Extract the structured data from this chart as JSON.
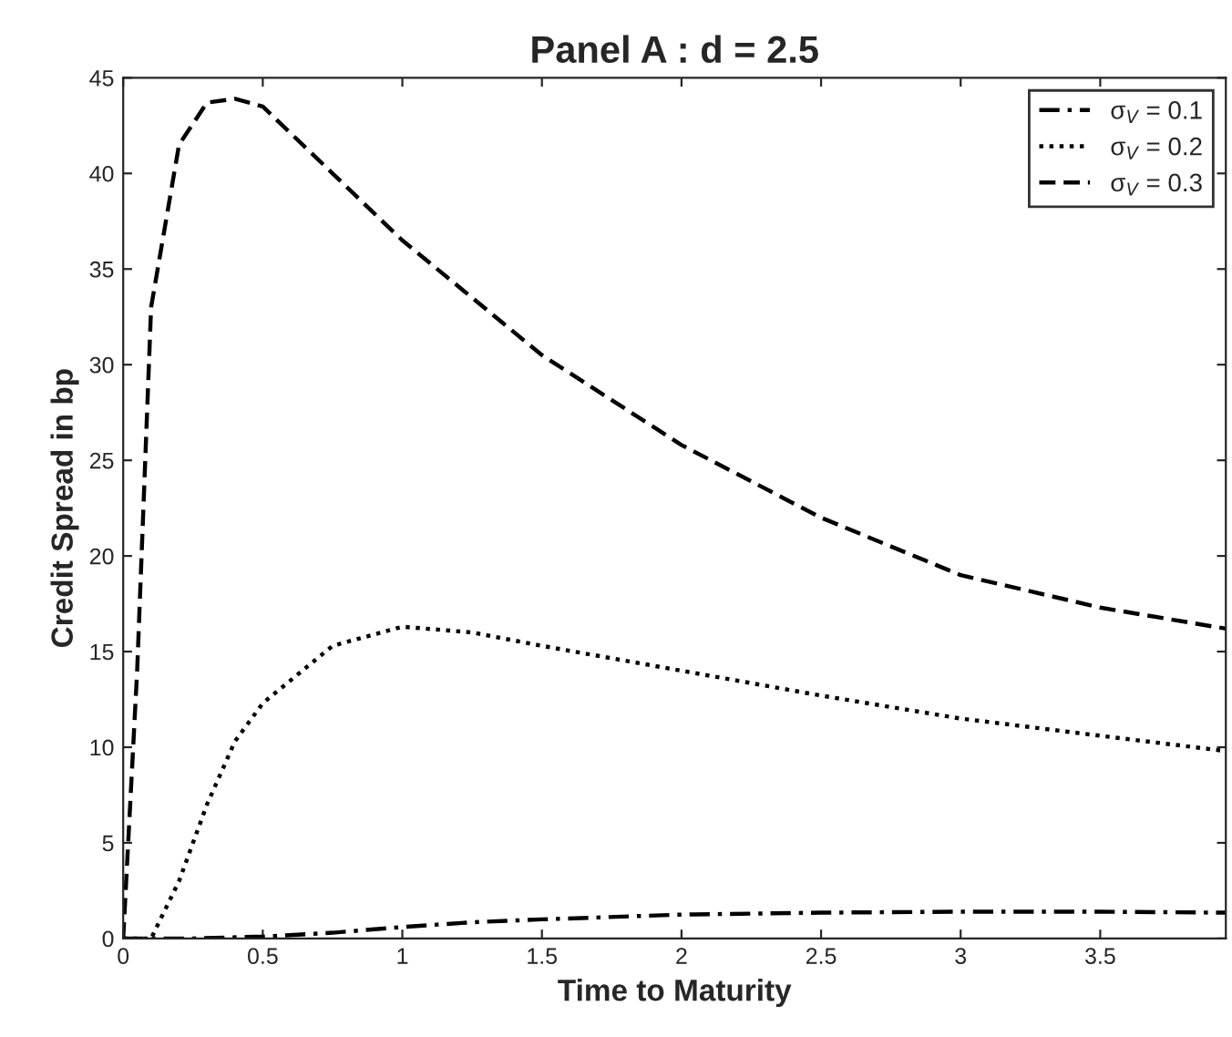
{
  "chart_data": {
    "type": "line",
    "title": "Panel A : d = 2.5",
    "xlabel": "Time to Maturity",
    "ylabel": "Credit Spread in bp",
    "xlim": [
      0,
      3.95
    ],
    "xticks": [
      0,
      0.5,
      1,
      1.5,
      2,
      2.5,
      3,
      3.5
    ],
    "ylim": [
      0,
      45
    ],
    "yticks": [
      0,
      5,
      10,
      15,
      20,
      25,
      30,
      35,
      40,
      45
    ],
    "grid": false,
    "legend": "top right",
    "marker": "none",
    "series": [
      {
        "name": "σ$_{V}$ = 0.1",
        "color": "#000000",
        "line_style": "dashdot",
        "x": [
          0,
          0.25,
          0.5,
          0.75,
          1,
          1.25,
          1.5,
          2,
          2.5,
          3,
          3.5,
          3.95
        ],
        "values": [
          0,
          0,
          0.1,
          0.3,
          0.6,
          0.85,
          1.0,
          1.25,
          1.35,
          1.4,
          1.4,
          1.35
        ]
      },
      {
        "name": "σ$_{V}$ = 0.2",
        "color": "#000000",
        "line_style": "dotted",
        "x": [
          0,
          0.1,
          0.2,
          0.3,
          0.4,
          0.5,
          0.75,
          1,
          1.25,
          1.5,
          2,
          2.5,
          3,
          3.5,
          3.95
        ],
        "values": [
          0,
          0,
          3,
          7,
          10.3,
          12.3,
          15.3,
          16.3,
          16,
          15.3,
          14,
          12.7,
          11.5,
          10.6,
          9.8
        ]
      },
      {
        "name": "σ$_{V}$ = 0.3",
        "color": "#000000",
        "line_style": "dashed",
        "x": [
          0,
          0.05,
          0.1,
          0.2,
          0.3,
          0.4,
          0.5,
          0.75,
          1,
          1.5,
          2,
          2.5,
          3,
          3.5,
          3.95
        ],
        "values": [
          0,
          14,
          33,
          41.5,
          43.7,
          43.9,
          43.5,
          40,
          36.5,
          30.5,
          25.8,
          22,
          19,
          17.3,
          16.2
        ]
      }
    ]
  }
}
